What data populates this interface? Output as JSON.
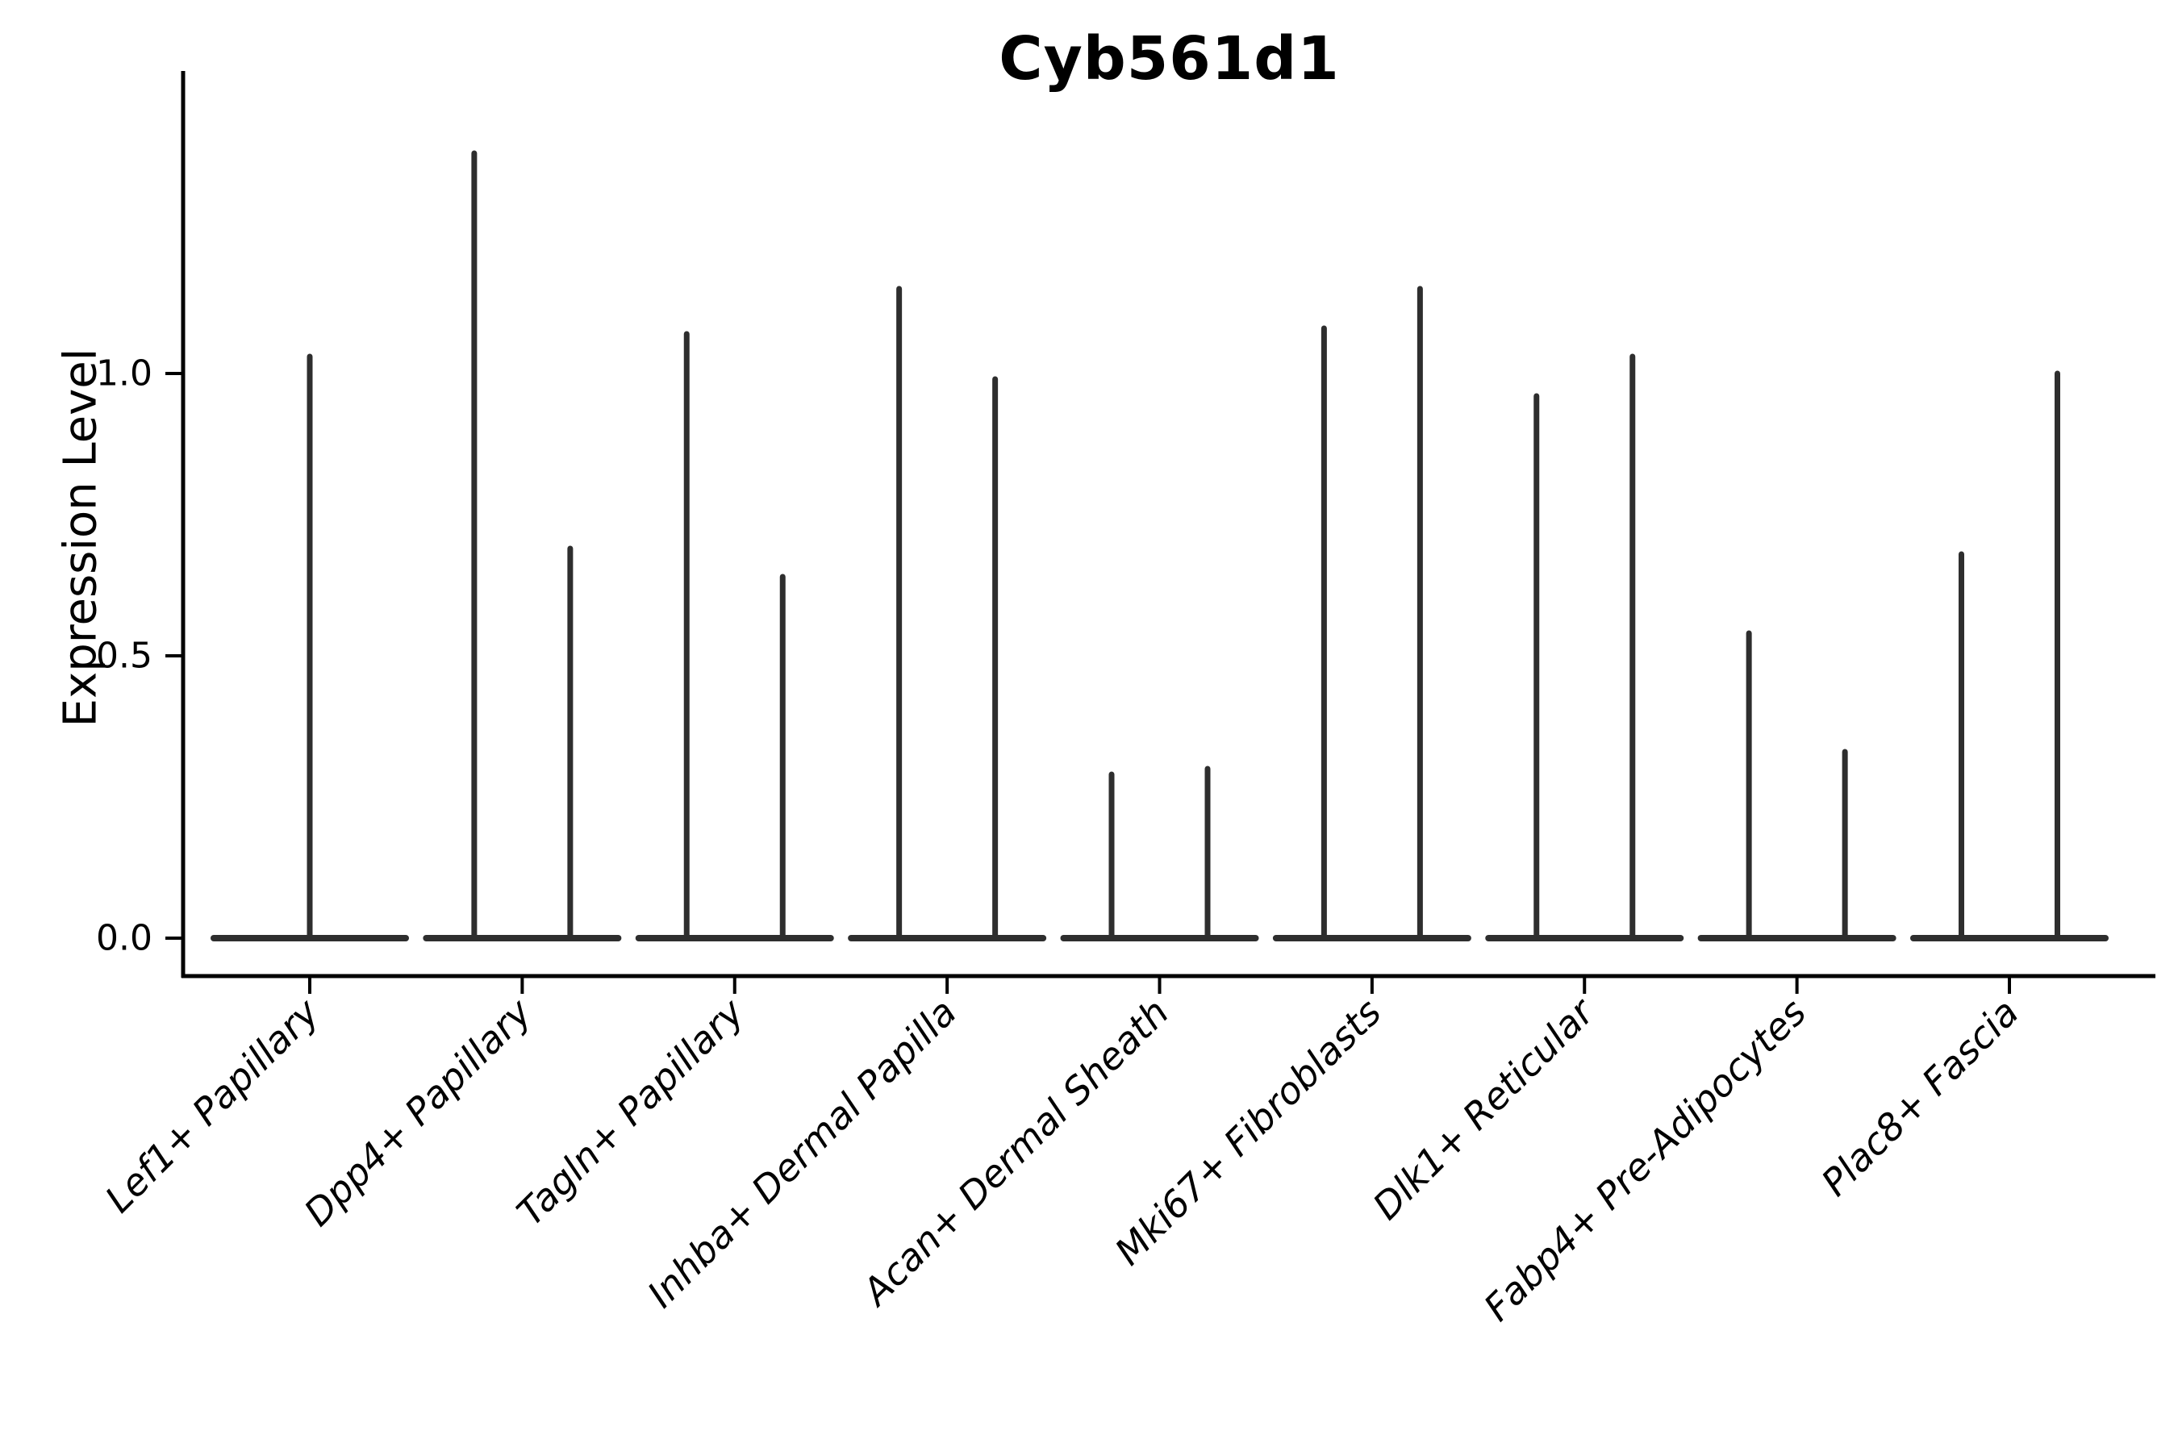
{
  "chart_data": {
    "type": "violin",
    "title": "Cyb561d1",
    "ylabel": "Expression Level",
    "xlabel": "",
    "ytick_labels": [
      "0.0",
      "0.5",
      "1.0"
    ],
    "ytick_values": [
      0.0,
      0.5,
      1.0
    ],
    "ylim": [
      -0.07,
      1.54
    ],
    "grid": false,
    "legend_position": "none",
    "categories": [
      "Lef1+ Papillary",
      "Dpp4+ Papillary",
      "Tagln+ Papillary",
      "Inhba+ Dermal Papilla",
      "Acan+ Dermal Sheath",
      "Mki67+ Fibroblasts",
      "Dlk1+ Reticular",
      "Fabp4+ Pre-Adipocytes",
      "Plac8+ Fascia"
    ],
    "groups": [
      {
        "category": "Lef1+ Papillary",
        "violin_maxima": [
          1.03
        ]
      },
      {
        "category": "Dpp4+ Papillary",
        "violin_maxima": [
          1.39,
          0.69
        ]
      },
      {
        "category": "Tagln+ Papillary",
        "violin_maxima": [
          1.07,
          0.64
        ]
      },
      {
        "category": "Inhba+ Dermal Papilla",
        "violin_maxima": [
          1.15,
          0.99
        ]
      },
      {
        "category": "Acan+ Dermal Sheath",
        "violin_maxima": [
          0.29,
          0.3
        ]
      },
      {
        "category": "Mki67+ Fibroblasts",
        "violin_maxima": [
          1.08,
          1.15
        ]
      },
      {
        "category": "Dlk1+ Reticular",
        "violin_maxima": [
          0.96,
          1.03
        ]
      },
      {
        "category": "Fabp4+ Pre-Adipocytes",
        "violin_maxima": [
          0.54,
          0.33
        ]
      },
      {
        "category": "Plac8+ Fascia",
        "violin_maxima": [
          0.68,
          1.0
        ]
      }
    ],
    "colors": {
      "violin_stroke": "#2e2e2e",
      "axis": "#000000",
      "text": "#000000",
      "background": "#ffffff"
    }
  }
}
